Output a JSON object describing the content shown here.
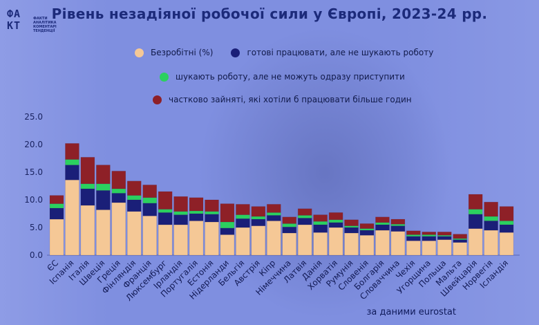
{
  "title": "Рівень незадіяної робочої сили у Європі, 2023-24 рр.",
  "logo": {
    "mark_lines": [
      "ФА",
      "КТ"
    ],
    "text_lines": [
      "ФАКТИ",
      "АНАЛІТИКА",
      "КОМЕНТАРІ",
      "ТЕНДЕНЦІЇ"
    ]
  },
  "source": "за даними eurostat",
  "colors": {
    "unemployed": "#f5c896",
    "available_not_seeking": "#1a1f78",
    "seeking_not_available": "#2bd05f",
    "underemployed": "#8e2027"
  },
  "chart_data": {
    "type": "bar",
    "stacked": true,
    "ylim": [
      0,
      25
    ],
    "yticks": [
      "0.0",
      "5.0",
      "10.0",
      "15.0",
      "20.0",
      "25.0"
    ],
    "grid": false,
    "legend_position": "top",
    "categories": [
      "ЄС",
      "Іспанія",
      "Італія",
      "Швеція",
      "Греція",
      "Фінляндія",
      "Франція",
      "Люксембург",
      "Ірландія",
      "Португалія",
      "Естонія",
      "Нідерланди",
      "Бельгія",
      "Австрія",
      "Кіпр",
      "Німеччина",
      "Латвія",
      "Данія",
      "Хорватія",
      "Румунія",
      "Словенія",
      "Болгарія",
      "Словаччина",
      "Чехія",
      "Угорщина",
      "Польща",
      "Мальта",
      "Швейцарія",
      "Норвегія",
      "Ісландія"
    ],
    "series": [
      {
        "name": "Безробітні (%)",
        "key": "unemployed",
        "values": [
          6.5,
          13.6,
          9.0,
          8.2,
          9.5,
          7.9,
          7.1,
          5.5,
          5.5,
          6.2,
          6.0,
          3.7,
          5.0,
          5.3,
          6.2,
          4.0,
          5.5,
          4.1,
          5.0,
          4.0,
          3.6,
          4.5,
          4.3,
          2.6,
          2.6,
          2.8,
          2.3,
          4.8,
          4.5,
          4.1
        ]
      },
      {
        "name": "готові працювати, але не шукають роботу",
        "key": "available_not_seeking",
        "values": [
          2.0,
          2.7,
          3.0,
          3.5,
          1.7,
          2.1,
          2.3,
          2.2,
          1.8,
          1.3,
          1.4,
          1.2,
          1.6,
          1.2,
          1.0,
          1.1,
          1.2,
          1.4,
          0.9,
          1.0,
          0.9,
          1.0,
          1.0,
          0.8,
          0.8,
          0.6,
          0.5,
          2.6,
          1.7,
          1.4
        ]
      },
      {
        "name": "шукають роботу, але не можуть одразу приступити",
        "key": "seeking_not_available",
        "values": [
          0.8,
          1.0,
          0.9,
          1.2,
          0.8,
          0.8,
          1.0,
          0.6,
          0.6,
          0.5,
          0.5,
          1.1,
          0.7,
          0.5,
          0.5,
          0.6,
          0.5,
          0.6,
          0.5,
          0.3,
          0.3,
          0.4,
          0.3,
          0.3,
          0.3,
          0.2,
          0.2,
          0.9,
          0.8,
          0.7
        ]
      },
      {
        "name": "частково зайняті, які хотіли б працювати більше годин",
        "key": "underemployed",
        "values": [
          1.5,
          2.9,
          4.8,
          3.4,
          3.2,
          2.6,
          2.3,
          3.2,
          2.7,
          2.4,
          2.1,
          3.3,
          1.9,
          1.8,
          1.5,
          1.2,
          1.2,
          1.2,
          1.3,
          1.1,
          0.9,
          1.0,
          0.9,
          0.7,
          0.5,
          0.6,
          0.8,
          2.7,
          2.6,
          2.6
        ]
      }
    ]
  }
}
